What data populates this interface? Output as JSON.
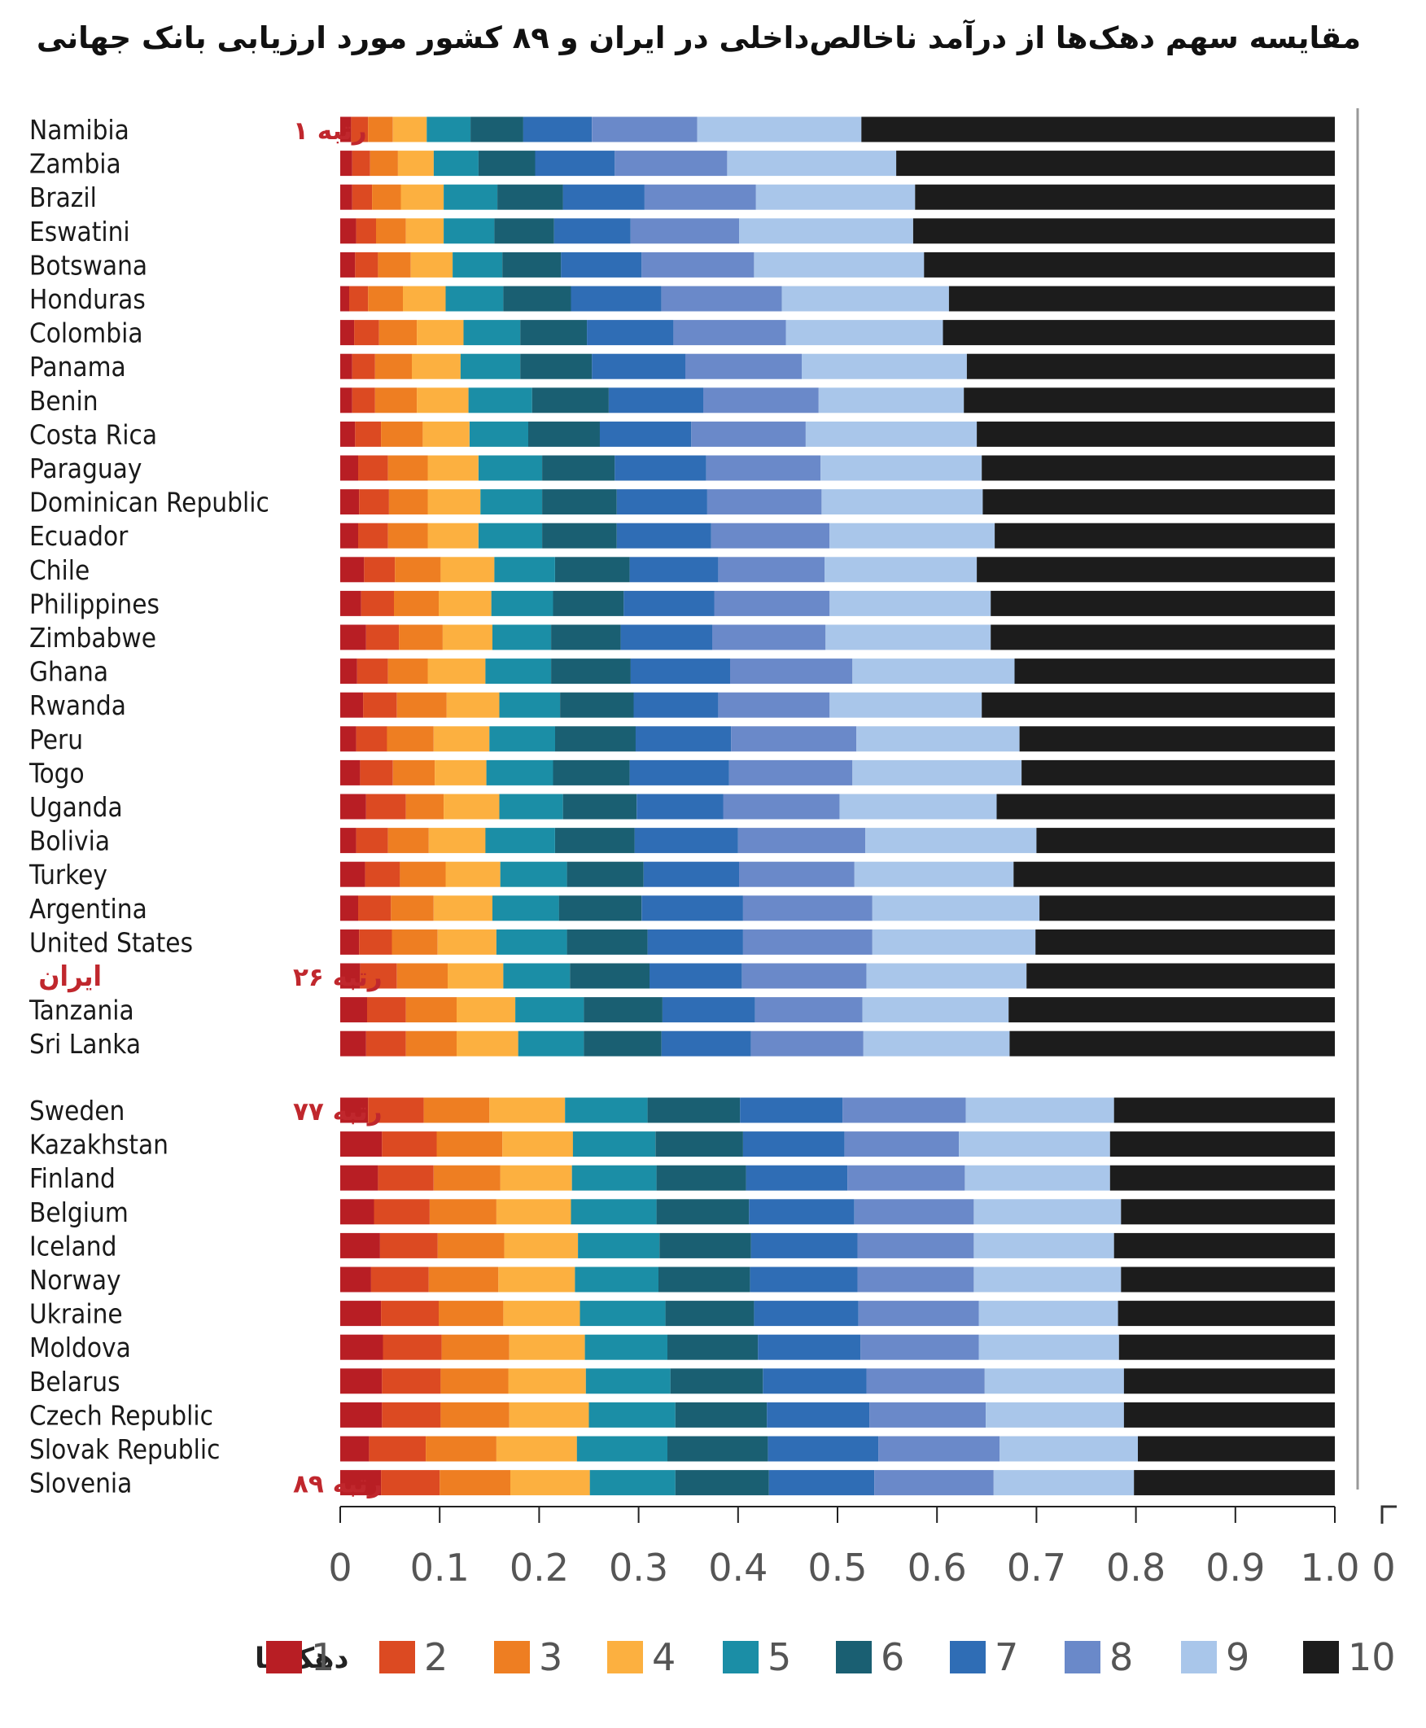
{
  "title": "مقایسه سهم دهک‌ها از درآمد ناخالص‌داخلی در ایران و ۸۹ کشور مورد ارزیابی بانک جهانی",
  "chart_data": {
    "type": "bar",
    "orientation": "horizontal",
    "stacked": true,
    "title": "مقایسه سهم دهک‌ها از درآمد ناخالص‌داخلی در ایران و ۸۹ کشور مورد ارزیابی بانک جهانی",
    "xlim": [
      0,
      1.0
    ],
    "x_ticks": [
      "0",
      "0.1",
      "0.2",
      "0.3",
      "0.4",
      "0.5",
      "0.6",
      "0.7",
      "0.8",
      "0.9",
      "1.0"
    ],
    "extra_tick_label": "0",
    "legend_title": "دهک‌ها",
    "legend_position": "bottom",
    "legend": [
      "1",
      "2",
      "3",
      "4",
      "5",
      "6",
      "7",
      "8",
      "9",
      "10"
    ],
    "colors": [
      "#b81e24",
      "#dc4a22",
      "#ee7e22",
      "#fcb040",
      "#1b8ea6",
      "#1a5f72",
      "#2f6db5",
      "#6a89c9",
      "#a9c6ea",
      "#1c1c1c"
    ],
    "groups": [
      {
        "name": "top",
        "countries": [
          {
            "name": "Namibia",
            "cum": [
              0.011,
              0.028,
              0.053,
              0.087,
              0.131,
              0.184,
              0.253,
              0.359,
              0.524,
              1.0
            ]
          },
          {
            "name": "Zambia",
            "cum": [
              0.012,
              0.03,
              0.058,
              0.094,
              0.139,
              0.196,
              0.276,
              0.389,
              0.559,
              1.0
            ]
          },
          {
            "name": "Brazil",
            "cum": [
              0.012,
              0.032,
              0.061,
              0.104,
              0.158,
              0.224,
              0.306,
              0.418,
              0.578,
              1.0
            ]
          },
          {
            "name": "Eswatini",
            "cum": [
              0.016,
              0.036,
              0.066,
              0.104,
              0.155,
              0.215,
              0.292,
              0.401,
              0.576,
              1.0
            ]
          },
          {
            "name": "Botswana",
            "cum": [
              0.015,
              0.038,
              0.071,
              0.113,
              0.163,
              0.222,
              0.303,
              0.416,
              0.587,
              1.0
            ]
          },
          {
            "name": "Honduras",
            "cum": [
              0.009,
              0.028,
              0.063,
              0.106,
              0.164,
              0.232,
              0.323,
              0.444,
              0.612,
              1.0
            ]
          },
          {
            "name": "Colombia",
            "cum": [
              0.014,
              0.039,
              0.077,
              0.124,
              0.181,
              0.248,
              0.335,
              0.448,
              0.606,
              1.0
            ]
          },
          {
            "name": "Panama",
            "cum": [
              0.012,
              0.035,
              0.072,
              0.121,
              0.181,
              0.253,
              0.347,
              0.464,
              0.63,
              1.0
            ]
          },
          {
            "name": "Benin",
            "cum": [
              0.012,
              0.035,
              0.077,
              0.129,
              0.193,
              0.27,
              0.365,
              0.481,
              0.627,
              1.0
            ]
          },
          {
            "name": "Costa Rica",
            "cum": [
              0.015,
              0.041,
              0.083,
              0.13,
              0.189,
              0.261,
              0.353,
              0.468,
              0.64,
              1.0
            ]
          },
          {
            "name": "Paraguay",
            "cum": [
              0.018,
              0.048,
              0.088,
              0.139,
              0.203,
              0.276,
              0.368,
              0.483,
              0.645,
              1.0
            ]
          },
          {
            "name": "Dominican Republic",
            "cum": [
              0.019,
              0.049,
              0.088,
              0.141,
              0.203,
              0.278,
              0.369,
              0.484,
              0.646,
              1.0
            ]
          },
          {
            "name": "Ecuador",
            "cum": [
              0.018,
              0.048,
              0.088,
              0.139,
              0.203,
              0.278,
              0.373,
              0.492,
              0.658,
              1.0
            ]
          },
          {
            "name": "Chile",
            "cum": [
              0.024,
              0.055,
              0.101,
              0.155,
              0.216,
              0.291,
              0.38,
              0.487,
              0.64,
              1.0
            ]
          },
          {
            "name": "Philippines",
            "cum": [
              0.021,
              0.054,
              0.099,
              0.152,
              0.214,
              0.285,
              0.376,
              0.492,
              0.654,
              1.0
            ]
          },
          {
            "name": "Zimbabwe",
            "cum": [
              0.026,
              0.059,
              0.103,
              0.153,
              0.212,
              0.282,
              0.374,
              0.488,
              0.654,
              1.0
            ]
          },
          {
            "name": "Ghana",
            "cum": [
              0.017,
              0.048,
              0.088,
              0.146,
              0.212,
              0.292,
              0.392,
              0.515,
              0.678,
              1.0
            ]
          },
          {
            "name": "Rwanda",
            "cum": [
              0.023,
              0.057,
              0.107,
              0.16,
              0.221,
              0.295,
              0.38,
              0.492,
              0.645,
              1.0
            ]
          },
          {
            "name": "Peru",
            "cum": [
              0.016,
              0.047,
              0.094,
              0.15,
              0.216,
              0.297,
              0.393,
              0.519,
              0.683,
              1.0
            ]
          },
          {
            "name": "Togo",
            "cum": [
              0.02,
              0.053,
              0.095,
              0.147,
              0.214,
              0.291,
              0.391,
              0.515,
              0.685,
              1.0
            ]
          },
          {
            "name": "Uganda",
            "cum": [
              0.026,
              0.066,
              0.104,
              0.16,
              0.224,
              0.298,
              0.385,
              0.502,
              0.66,
              1.0
            ]
          },
          {
            "name": "Bolivia",
            "cum": [
              0.016,
              0.048,
              0.089,
              0.146,
              0.216,
              0.296,
              0.4,
              0.528,
              0.7,
              1.0
            ]
          },
          {
            "name": "Turkey",
            "cum": [
              0.025,
              0.06,
              0.106,
              0.161,
              0.228,
              0.305,
              0.401,
              0.517,
              0.677,
              1.0
            ]
          },
          {
            "name": "Argentina",
            "cum": [
              0.018,
              0.051,
              0.094,
              0.153,
              0.22,
              0.303,
              0.405,
              0.535,
              0.703,
              1.0
            ]
          },
          {
            "name": "United States",
            "cum": [
              0.019,
              0.052,
              0.098,
              0.157,
              0.228,
              0.309,
              0.405,
              0.535,
              0.699,
              1.0
            ]
          },
          {
            "name": "ایران",
            "cum": [
              0.02,
              0.057,
              0.108,
              0.164,
              0.231,
              0.311,
              0.404,
              0.529,
              0.69,
              1.0
            ]
          },
          {
            "name": "Tanzania",
            "cum": [
              0.027,
              0.066,
              0.117,
              0.176,
              0.245,
              0.324,
              0.417,
              0.525,
              0.672,
              1.0
            ]
          },
          {
            "name": "Sri Lanka",
            "cum": [
              0.026,
              0.066,
              0.117,
              0.179,
              0.245,
              0.323,
              0.413,
              0.526,
              0.673,
              1.0
            ]
          }
        ]
      },
      {
        "name": "bottom",
        "countries": [
          {
            "name": "Sweden",
            "cum": [
              0.028,
              0.084,
              0.15,
              0.226,
              0.309,
              0.402,
              0.505,
              0.629,
              0.778,
              1.0
            ]
          },
          {
            "name": "Kazakhstan",
            "cum": [
              0.042,
              0.097,
              0.163,
              0.234,
              0.317,
              0.405,
              0.507,
              0.622,
              0.774,
              1.0
            ]
          },
          {
            "name": "Finland",
            "cum": [
              0.038,
              0.094,
              0.161,
              0.233,
              0.318,
              0.408,
              0.51,
              0.628,
              0.774,
              1.0
            ]
          },
          {
            "name": "Belgium",
            "cum": [
              0.034,
              0.09,
              0.157,
              0.232,
              0.318,
              0.411,
              0.517,
              0.637,
              0.785,
              1.0
            ]
          },
          {
            "name": "Iceland",
            "cum": [
              0.04,
              0.098,
              0.165,
              0.239,
              0.321,
              0.413,
              0.52,
              0.637,
              0.778,
              1.0
            ]
          },
          {
            "name": "Norway",
            "cum": [
              0.031,
              0.089,
              0.159,
              0.236,
              0.32,
              0.412,
              0.52,
              0.637,
              0.785,
              1.0
            ]
          },
          {
            "name": "Ukraine",
            "cum": [
              0.041,
              0.099,
              0.164,
              0.241,
              0.327,
              0.416,
              0.521,
              0.642,
              0.782,
              1.0
            ]
          },
          {
            "name": "Moldova",
            "cum": [
              0.043,
              0.102,
              0.17,
              0.246,
              0.329,
              0.42,
              0.523,
              0.642,
              0.783,
              1.0
            ]
          },
          {
            "name": "Belarus",
            "cum": [
              0.042,
              0.101,
              0.169,
              0.247,
              0.332,
              0.425,
              0.529,
              0.648,
              0.788,
              1.0
            ]
          },
          {
            "name": "Czech Republic",
            "cum": [
              0.042,
              0.101,
              0.17,
              0.25,
              0.337,
              0.429,
              0.532,
              0.649,
              0.788,
              1.0
            ]
          },
          {
            "name": "Slovak Republic",
            "cum": [
              0.029,
              0.086,
              0.157,
              0.238,
              0.329,
              0.43,
              0.541,
              0.663,
              0.802,
              1.0
            ]
          },
          {
            "name": "Slovenia",
            "cum": [
              0.041,
              0.1,
              0.171,
              0.251,
              0.337,
              0.431,
              0.537,
              0.657,
              0.798,
              1.0
            ]
          }
        ]
      }
    ],
    "annotations": [
      {
        "text": "رتبه ۱",
        "country": "Namibia"
      },
      {
        "text": "رتبه ۲۶",
        "country": "ایران"
      },
      {
        "text": "رتبه ۷۷",
        "country": "Sweden"
      },
      {
        "text": "رتبه ۸۹",
        "country": "Slovenia"
      }
    ]
  }
}
